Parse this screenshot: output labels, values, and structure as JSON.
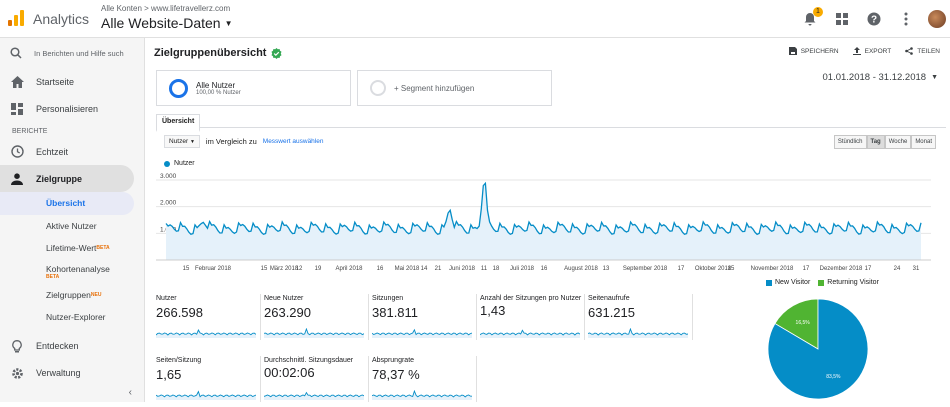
{
  "app": {
    "name": "Analytics",
    "crumb": "Alle Konten > www.lifetravellerz.com",
    "property": "Alle Website-Daten",
    "notification_count": "1"
  },
  "sidebar": {
    "search_placeholder": "In Berichten und Hilfe such",
    "items": [
      {
        "label": "Startseite",
        "icon": "home-icon"
      },
      {
        "label": "Personalisieren",
        "icon": "dashboard-icon"
      }
    ],
    "section": "BERICHTE",
    "reports": [
      {
        "label": "Echtzeit",
        "icon": "clock-icon"
      },
      {
        "label": "Zielgruppe",
        "icon": "person-icon"
      }
    ],
    "sub": [
      "Übersicht",
      "Aktive Nutzer",
      "Lifetime-Wert",
      "Kohortenanalyse",
      "Zielgruppen",
      "Nutzer-Explorer"
    ],
    "beta": "BETA",
    "neu": "NEU",
    "bottom": [
      {
        "label": "Entdecken",
        "icon": "lightbulb-icon"
      },
      {
        "label": "Verwaltung",
        "icon": "gear-icon"
      }
    ]
  },
  "page": {
    "title": "Zielgruppenübersicht",
    "actions": [
      "SPEICHERN",
      "EXPORT",
      "TEILEN"
    ]
  },
  "segments": {
    "active_label": "Alle Nutzer",
    "active_sub": "100,00 % Nutzer",
    "add_label": "+ Segment hinzufügen"
  },
  "date_range": "01.01.2018 - 31.12.2018",
  "tab": "Übersicht",
  "controls": {
    "metric": "Nutzer",
    "compare_text": "im Vergleich zu",
    "compare_link": "Messwert auswählen",
    "granularity": [
      "Stündlich",
      "Tag",
      "Woche",
      "Monat"
    ],
    "selected": "Tag"
  },
  "chart_data": {
    "type": "line",
    "series": [
      {
        "name": "Nutzer",
        "color": "#058dc7"
      }
    ],
    "y_ticks": [
      "3.000",
      "2.000",
      "1.000"
    ],
    "ylim": [
      0,
      3300
    ],
    "x_labels": [
      "15",
      "Februar 2018",
      "15",
      "März 2018",
      "12",
      "19",
      "April 2018",
      "16",
      "Mai 2018",
      "14",
      "21",
      "Juni 2018",
      "11",
      "18",
      "Juli 2018",
      "16",
      "August 2018",
      "13",
      "September 2018",
      "17",
      "Oktober 2018",
      "15",
      "November 2018",
      "17",
      "Dezember 2018",
      "17",
      "24",
      "31"
    ],
    "peaks": [
      {
        "x": 0.42,
        "y": 2950
      },
      {
        "x": 0.375,
        "y": 1900
      },
      {
        "x": 0.05,
        "y": 1450
      }
    ]
  },
  "kpis": [
    {
      "label": "Nutzer",
      "value": "266.598"
    },
    {
      "label": "Neue Nutzer",
      "value": "263.290"
    },
    {
      "label": "Sitzungen",
      "value": "381.811"
    },
    {
      "label": "Anzahl der Sitzungen pro Nutzer",
      "value": "1,43"
    },
    {
      "label": "Seitenaufrufe",
      "value": "631.215"
    },
    {
      "label": "Seiten/Sitzung",
      "value": "1,65"
    },
    {
      "label": "Durchschnittl. Sitzungsdauer",
      "value": "00:02:06"
    },
    {
      "label": "Absprungrate",
      "value": "78,37 %"
    }
  ],
  "pie": {
    "legend": [
      {
        "name": "New Visitor",
        "color": "#058dc7"
      },
      {
        "name": "Returning Visitor",
        "color": "#50b432"
      }
    ],
    "values": [
      83.5,
      16.5
    ],
    "labels": [
      "83,5%",
      "16,5%"
    ]
  }
}
